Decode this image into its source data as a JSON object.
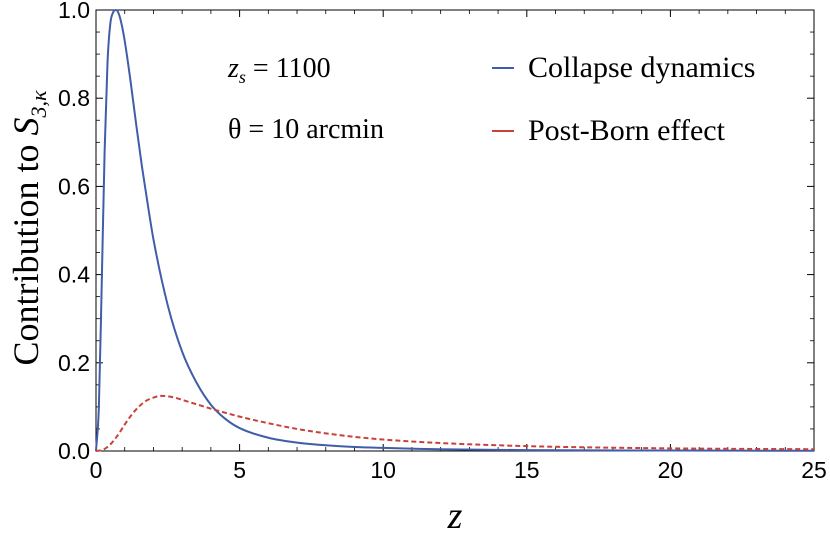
{
  "chart_data": {
    "type": "line",
    "xlabel": "z",
    "ylabel_prefix": "Contribution to ",
    "ylabel_symbol": "S",
    "ylabel_subscript": "3,κ",
    "xlim": [
      0,
      25
    ],
    "ylim": [
      0,
      1.0
    ],
    "xticks": [
      0,
      5,
      10,
      15,
      20,
      25
    ],
    "xtick_labels": [
      "0",
      "5",
      "10",
      "15",
      "20",
      "25"
    ],
    "yticks": [
      0.0,
      0.2,
      0.4,
      0.6,
      0.8,
      1.0
    ],
    "ytick_labels": [
      "0.0",
      "0.2",
      "0.4",
      "0.6",
      "0.8",
      "1.0"
    ],
    "grid": false,
    "legend_position": "top-right",
    "annotations": {
      "zs_var": "z",
      "zs_sub": "s",
      "zs_rest": " = 1100",
      "theta_text": "θ = 10 arcmin"
    },
    "series": [
      {
        "name": "Collapse dynamics",
        "color": "#3f5da8",
        "style": "solid",
        "x": [
          0,
          0.1,
          0.2,
          0.3,
          0.4,
          0.5,
          0.6,
          0.7,
          0.8,
          0.9,
          1.0,
          1.2,
          1.4,
          1.6,
          1.8,
          2.0,
          2.5,
          3.0,
          3.5,
          4.0,
          4.5,
          5.0,
          6.0,
          7.0,
          8.0,
          9.0,
          10.0,
          12.0,
          15.0,
          20.0,
          25.0
        ],
        "y": [
          0,
          0.1,
          0.38,
          0.68,
          0.88,
          0.97,
          0.995,
          1.0,
          0.99,
          0.965,
          0.93,
          0.84,
          0.74,
          0.645,
          0.56,
          0.48,
          0.33,
          0.225,
          0.155,
          0.105,
          0.073,
          0.052,
          0.03,
          0.019,
          0.013,
          0.009,
          0.007,
          0.004,
          0.002,
          0.001,
          0.0005
        ]
      },
      {
        "name": "Post-Born effect",
        "color": "#c8423a",
        "style": "dashed",
        "x": [
          0,
          0.25,
          0.5,
          0.75,
          1.0,
          1.25,
          1.5,
          1.75,
          2.0,
          2.25,
          2.5,
          2.75,
          3.0,
          3.5,
          4.0,
          5.0,
          6.0,
          7.0,
          8.0,
          9.0,
          10.0,
          12.0,
          14.0,
          16.0,
          18.0,
          20.0,
          22.0,
          25.0
        ],
        "y": [
          0,
          0.003,
          0.015,
          0.035,
          0.06,
          0.083,
          0.101,
          0.114,
          0.121,
          0.125,
          0.124,
          0.121,
          0.116,
          0.106,
          0.096,
          0.078,
          0.063,
          0.05,
          0.04,
          0.032,
          0.026,
          0.018,
          0.013,
          0.0095,
          0.0075,
          0.006,
          0.005,
          0.004
        ]
      }
    ]
  }
}
